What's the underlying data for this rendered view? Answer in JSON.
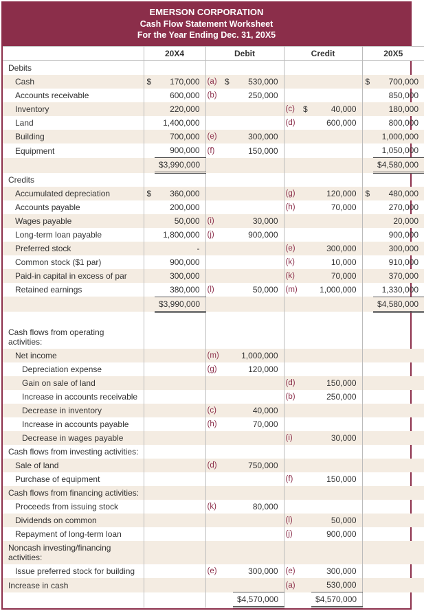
{
  "header": {
    "company": "EMERSON CORPORATION",
    "title": "Cash Flow Statement Worksheet",
    "period": "For the Year Ending Dec. 31, 20X5"
  },
  "columns": {
    "c1": "20X4",
    "c2": "Debit",
    "c3": "Credit",
    "c4": "20X5"
  },
  "colors": {
    "brand": "#8b2e4a",
    "stripe": "#f4ece2",
    "border": "#bbb",
    "rule": "#555"
  },
  "rows": [
    {
      "type": "section",
      "label": "Debits"
    },
    {
      "label": "Cash",
      "indent": 1,
      "c1_sym": "$",
      "c1": "170,000",
      "d_ref": "(a)",
      "d_sym": "$",
      "d": "530,000",
      "c4_sym": "$",
      "c4": "700,000",
      "stripe": true
    },
    {
      "label": "Accounts receivable",
      "indent": 1,
      "c1": "600,000",
      "d_ref": "(b)",
      "d": "250,000",
      "c4": "850,000"
    },
    {
      "label": "Inventory",
      "indent": 1,
      "c1": "220,000",
      "c_ref": "(c)",
      "c_sym": "$",
      "c": "40,000",
      "c4": "180,000",
      "stripe": true
    },
    {
      "label": "Land",
      "indent": 1,
      "c1": "1,400,000",
      "c_ref": "(d)",
      "c": "600,000",
      "c4": "800,000"
    },
    {
      "label": "Building",
      "indent": 1,
      "c1": "700,000",
      "d_ref": "(e)",
      "d": "300,000",
      "c4": "1,000,000",
      "stripe": true
    },
    {
      "label": "Equipment",
      "indent": 1,
      "c1": "900,000",
      "d_ref": "(f)",
      "d": "150,000",
      "c4": "1,050,000",
      "c1_rule": "bb",
      "c4_rule": "bb"
    },
    {
      "label": "",
      "c1_sym": "",
      "c1": "$3,990,000",
      "c4": "$4,580,000",
      "c1_rule": "dbl",
      "c4_rule": "dbl",
      "stripe": true
    },
    {
      "type": "section",
      "label": "Credits"
    },
    {
      "label": "Accumulated depreciation",
      "indent": 1,
      "c1_sym": "$",
      "c1": "360,000",
      "c_ref": "(g)",
      "c": "120,000",
      "c4_sym": "$",
      "c4": "480,000",
      "stripe": true
    },
    {
      "label": "Accounts payable",
      "indent": 1,
      "c1": "200,000",
      "c_ref": "(h)",
      "c": "70,000",
      "c4": "270,000"
    },
    {
      "label": "Wages payable",
      "indent": 1,
      "c1": "50,000",
      "d_ref": "(i)",
      "d": "30,000",
      "c4": "20,000",
      "stripe": true
    },
    {
      "label": "Long-term loan payable",
      "indent": 1,
      "c1": "1,800,000",
      "d_ref": "(j)",
      "d": "900,000",
      "c4": "900,000"
    },
    {
      "label": "Preferred stock",
      "indent": 1,
      "c1": "-",
      "c_ref": "(e)",
      "c": "300,000",
      "c4": "300,000",
      "stripe": true
    },
    {
      "label": "Common stock ($1 par)",
      "indent": 1,
      "c1": "900,000",
      "c_ref": "(k)",
      "c": "10,000",
      "c4": "910,000"
    },
    {
      "label": "Paid-in capital in excess of par",
      "indent": 1,
      "c1": "300,000",
      "c_ref": "(k)",
      "c": "70,000",
      "c4": "370,000",
      "stripe": true
    },
    {
      "label": "Retained earnings",
      "indent": 1,
      "c1": "380,000",
      "d_ref": "(l)",
      "d": "50,000",
      "c_ref": "(m)",
      "c": "1,000,000",
      "c4": "1,330,000",
      "c1_rule": "bb",
      "c4_rule": "bb"
    },
    {
      "label": "",
      "c1": "$3,990,000",
      "c4": "$4,580,000",
      "c1_rule": "dbl",
      "c4_rule": "dbl",
      "stripe": true
    },
    {
      "type": "blank"
    },
    {
      "type": "section",
      "label": "Cash flows from operating activities:"
    },
    {
      "label": "Net income",
      "indent": 1,
      "d_ref": "(m)",
      "d": "1,000,000",
      "stripe": true
    },
    {
      "label": "Depreciation expense",
      "indent": 2,
      "d_ref": "(g)",
      "d": "120,000"
    },
    {
      "label": "Gain on sale of land",
      "indent": 2,
      "c_ref": "(d)",
      "c": "150,000",
      "stripe": true
    },
    {
      "label": "Increase in accounts receivable",
      "indent": 2,
      "c_ref": "(b)",
      "c": "250,000"
    },
    {
      "label": "Decrease in inventory",
      "indent": 2,
      "d_ref": "(c)",
      "d": "40,000",
      "stripe": true
    },
    {
      "label": "Increase in accounts payable",
      "indent": 2,
      "d_ref": "(h)",
      "d": "70,000"
    },
    {
      "label": "Decrease in wages payable",
      "indent": 2,
      "c_ref": "(i)",
      "c": "30,000",
      "stripe": true
    },
    {
      "type": "section",
      "label": "Cash flows from investing activities:"
    },
    {
      "label": "Sale of land",
      "indent": 1,
      "d_ref": "(d)",
      "d": "750,000",
      "stripe": true
    },
    {
      "label": "Purchase of equipment",
      "indent": 1,
      "c_ref": "(f)",
      "c": "150,000"
    },
    {
      "type": "section",
      "label": "Cash flows from financing activities:",
      "stripe": true
    },
    {
      "label": "Proceeds from issuing stock",
      "indent": 1,
      "d_ref": "(k)",
      "d": "80,000"
    },
    {
      "label": "Dividends on common",
      "indent": 1,
      "c_ref": "(l)",
      "c": "50,000",
      "stripe": true
    },
    {
      "label": "Repayment of long-term loan",
      "indent": 1,
      "c_ref": "(j)",
      "c": "900,000"
    },
    {
      "type": "section",
      "label": "Noncash investing/financing activities:",
      "stripe": true
    },
    {
      "label": "Issue preferred stock for building",
      "indent": 1,
      "d_ref": "(e)",
      "d": "300,000",
      "c_ref": "(e)",
      "c": "300,000"
    },
    {
      "label": "Increase in cash",
      "c_ref": "(a)",
      "c": "530,000",
      "d_rule": "bb",
      "c_rule": "bb",
      "stripe": true
    },
    {
      "label": "",
      "d": "$4,570,000",
      "c": "$4,570,000",
      "d_rule": "dbl",
      "c_rule": "dbl"
    }
  ]
}
